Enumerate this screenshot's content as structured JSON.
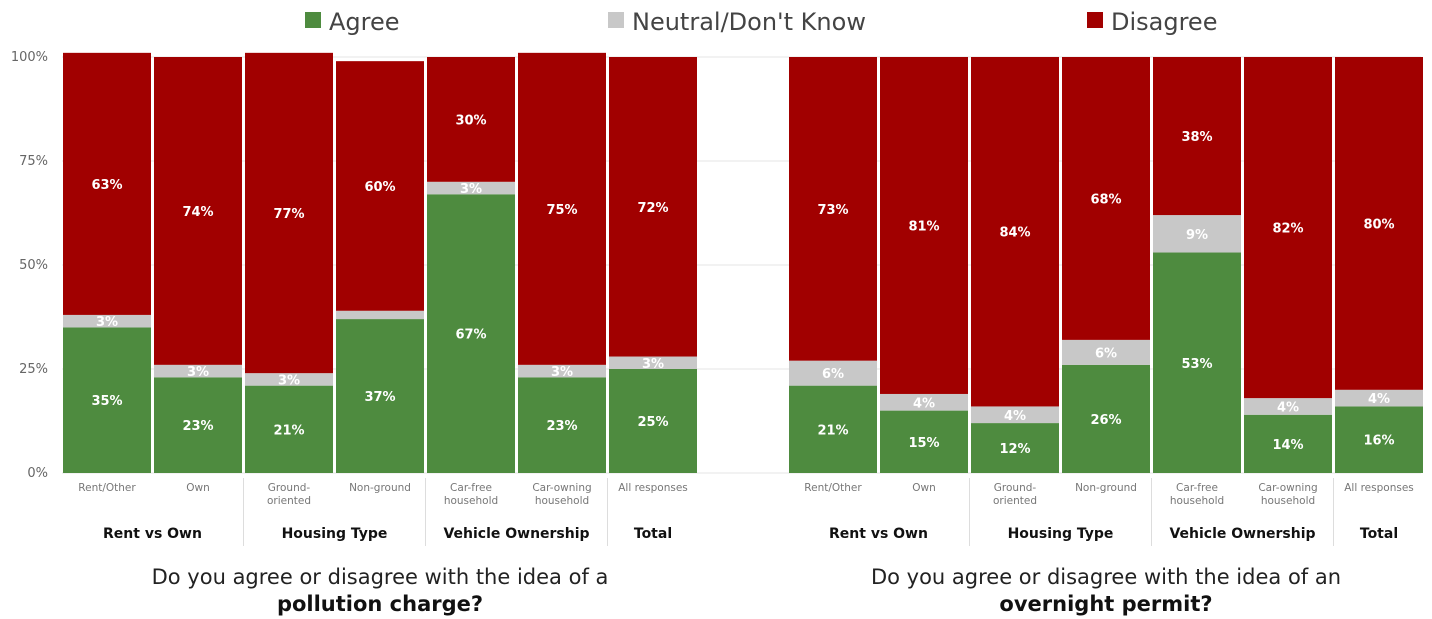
{
  "legend": [
    {
      "label": "Agree",
      "color": "#4e8b3f"
    },
    {
      "label": "Neutral/Don't Know",
      "color": "#c8c8c8"
    },
    {
      "label": "Disagree",
      "color": "#a10000"
    }
  ],
  "y_ticks": [
    "0%",
    "25%",
    "50%",
    "75%",
    "100%"
  ],
  "chart_data": [
    {
      "type": "bar",
      "stacked": true,
      "ylim": [
        0,
        100
      ],
      "question": "Do you agree or disagree with the idea of a",
      "question_bold": "pollution charge?",
      "categories": [
        [
          "Rent/Other"
        ],
        [
          "Own"
        ],
        [
          "Ground-",
          "oriented"
        ],
        [
          "Non-ground"
        ],
        [
          "Car-free",
          "household"
        ],
        [
          "Car-owning",
          "household"
        ],
        [
          "All responses"
        ]
      ],
      "groups": [
        {
          "label": "Rent vs Own",
          "span": 2
        },
        {
          "label": "Housing Type",
          "span": 2
        },
        {
          "label": "Vehicle Ownership",
          "span": 2
        },
        {
          "label": "Total",
          "span": 1
        }
      ],
      "series": [
        {
          "name": "Agree",
          "values": [
            35,
            23,
            21,
            37,
            67,
            23,
            25
          ],
          "labels": [
            "35%",
            "23%",
            "21%",
            "37%",
            "67%",
            "23%",
            "25%"
          ]
        },
        {
          "name": "Neutral/Don't Know",
          "values": [
            3,
            3,
            3,
            2,
            3,
            3,
            3
          ],
          "labels": [
            "3%",
            "3%",
            "3%",
            "",
            "3%",
            "3%",
            "3%"
          ]
        },
        {
          "name": "Disagree",
          "values": [
            63,
            74,
            77,
            60,
            30,
            75,
            72
          ],
          "labels": [
            "63%",
            "74%",
            "77%",
            "60%",
            "30%",
            "75%",
            "72%"
          ]
        }
      ]
    },
    {
      "type": "bar",
      "stacked": true,
      "ylim": [
        0,
        100
      ],
      "question": "Do you agree or disagree with the idea of an",
      "question_bold": "overnight permit?",
      "categories": [
        [
          "Rent/Other"
        ],
        [
          "Own"
        ],
        [
          "Ground-",
          "oriented"
        ],
        [
          "Non-ground"
        ],
        [
          "Car-free",
          "household"
        ],
        [
          "Car-owning",
          "household"
        ],
        [
          "All responses"
        ]
      ],
      "groups": [
        {
          "label": "Rent vs Own",
          "span": 2
        },
        {
          "label": "Housing Type",
          "span": 2
        },
        {
          "label": "Vehicle Ownership",
          "span": 2
        },
        {
          "label": "Total",
          "span": 1
        }
      ],
      "series": [
        {
          "name": "Agree",
          "values": [
            21,
            15,
            12,
            26,
            53,
            14,
            16
          ],
          "labels": [
            "21%",
            "15%",
            "12%",
            "26%",
            "53%",
            "14%",
            "16%"
          ]
        },
        {
          "name": "Neutral/Don't Know",
          "values": [
            6,
            4,
            4,
            6,
            9,
            4,
            4
          ],
          "labels": [
            "6%",
            "4%",
            "4%",
            "6%",
            "9%",
            "4%",
            "4%"
          ]
        },
        {
          "name": "Disagree",
          "values": [
            73,
            81,
            84,
            68,
            38,
            82,
            80
          ],
          "labels": [
            "73%",
            "81%",
            "84%",
            "68%",
            "38%",
            "82%",
            "80%"
          ]
        }
      ]
    }
  ]
}
